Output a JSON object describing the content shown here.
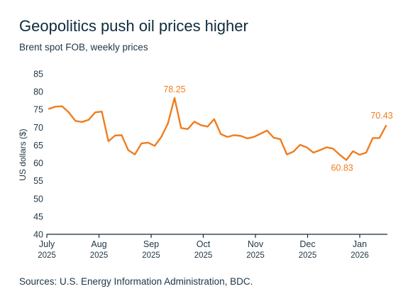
{
  "chart_data": {
    "type": "line",
    "title": "Geopolitics push oil prices higher",
    "subtitle": "Brent spot FOB, weekly prices",
    "ylabel": "US dollars ($)",
    "ylim": [
      40,
      85
    ],
    "yticks": [
      40,
      45,
      50,
      55,
      60,
      65,
      70,
      75,
      80,
      85
    ],
    "xticks": [
      {
        "month": "July",
        "year": "2025"
      },
      {
        "month": "Aug",
        "year": "2025"
      },
      {
        "month": "Sep",
        "year": "2025"
      },
      {
        "month": "Oct",
        "year": "2025"
      },
      {
        "month": "Nov",
        "year": "2025"
      },
      {
        "month": "Dec",
        "year": "2025"
      },
      {
        "month": "Jan",
        "year": "2026"
      }
    ],
    "series": [
      {
        "values": [
          75.2,
          75.8,
          75.9,
          74.2,
          71.8,
          71.5,
          72.1,
          74.2,
          74.4,
          66.1,
          67.7,
          67.8,
          63.6,
          62.4,
          65.5,
          65.7,
          64.8,
          67.3,
          71.1,
          78.25,
          69.8,
          69.5,
          71.6,
          70.6,
          70.2,
          72.3,
          68.1,
          67.3,
          67.8,
          67.6,
          66.9,
          67.3,
          68.2,
          69.1,
          67.1,
          66.7,
          62.4,
          63.2,
          65.1,
          64.4,
          62.9,
          63.6,
          64.4,
          64.0,
          62.3,
          60.83,
          63.3,
          62.3,
          62.9,
          67.0,
          67.0,
          70.43
        ]
      }
    ],
    "annotations": [
      {
        "label": "78.25",
        "index": 19
      },
      {
        "label": "60.83",
        "index": 45
      },
      {
        "label": "70.43",
        "index": 51
      }
    ],
    "colors": {
      "line": "#f07d1e",
      "axis": "#0e2a3b"
    },
    "grid": false,
    "legend": "none"
  },
  "source": "Sources: U.S. Energy Information Administration, BDC."
}
